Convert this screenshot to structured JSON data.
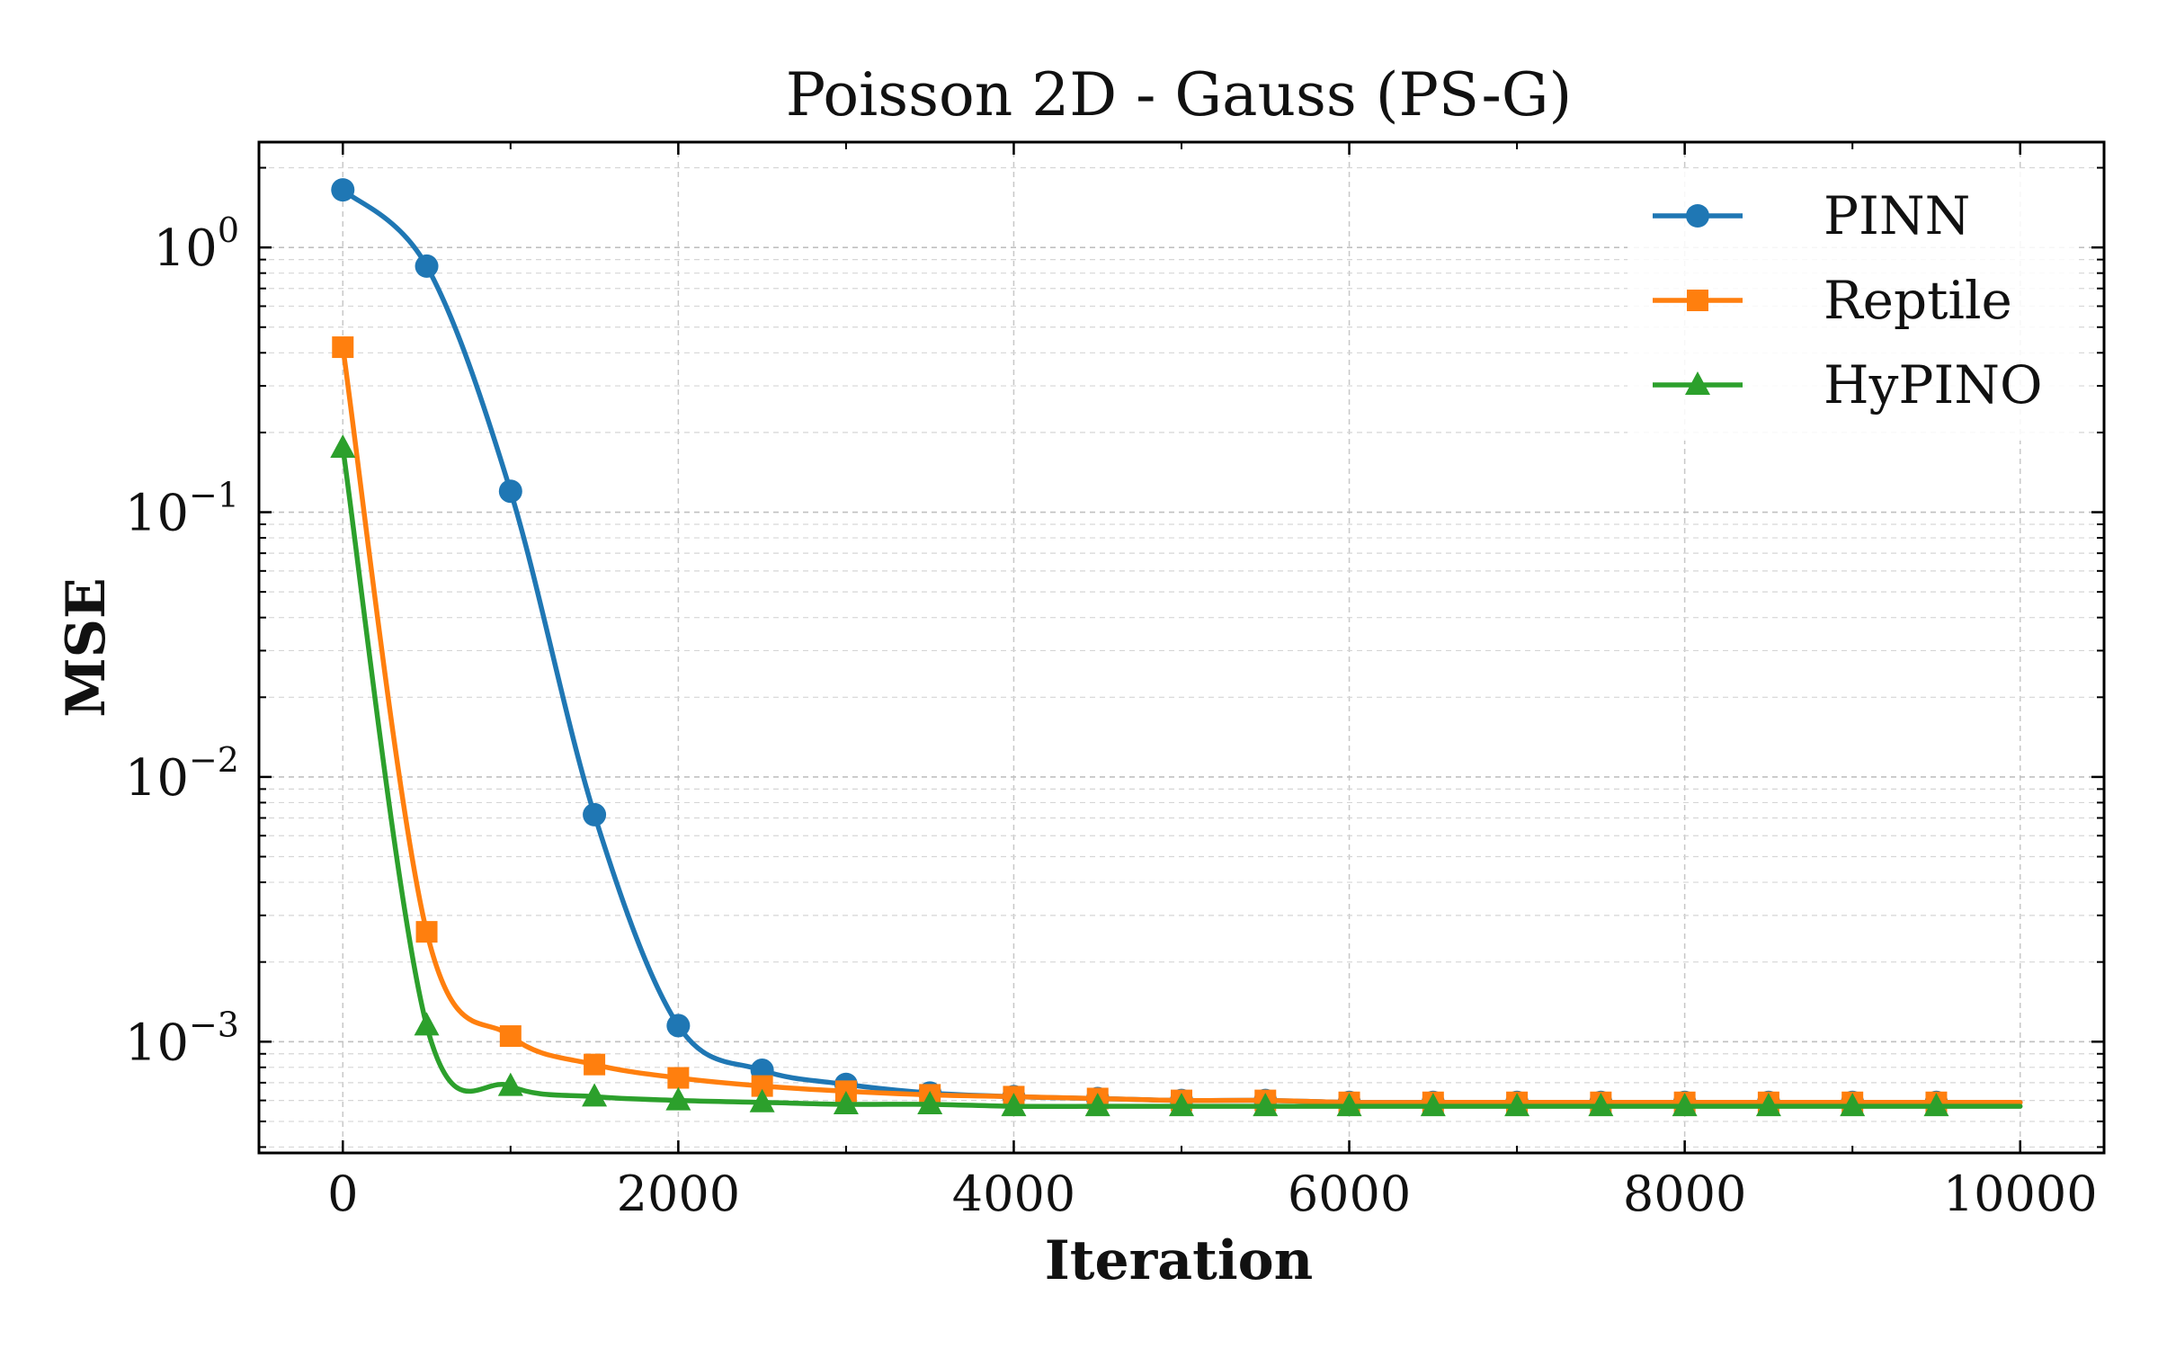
{
  "chart_data": {
    "type": "line",
    "title": "Poisson 2D - Gauss (PS-G)",
    "xlabel": "Iteration",
    "ylabel": "MSE",
    "xscale": "linear",
    "yscale": "log",
    "xlim": [
      -500,
      10500
    ],
    "ylim": [
      0.00038,
      2.5
    ],
    "xticks": [
      0,
      2000,
      4000,
      6000,
      8000,
      10000
    ],
    "xtick_labels": [
      "0",
      "2000",
      "4000",
      "6000",
      "8000",
      "10000"
    ],
    "yticks": [
      {
        "value": 1,
        "base": "10",
        "exp": "0"
      },
      {
        "value": 0.1,
        "base": "10",
        "exp": "−1"
      },
      {
        "value": 0.01,
        "base": "10",
        "exp": "−2"
      },
      {
        "value": 0.001,
        "base": "10",
        "exp": "−3"
      }
    ],
    "grid": true,
    "legend_position": "top-right",
    "series": [
      {
        "name": "PINN",
        "color": "#1f77b4",
        "marker": "circle",
        "x": [
          0,
          500,
          1000,
          1500,
          2000,
          2500,
          3000,
          3500,
          4000,
          4500,
          5000,
          5500,
          6000,
          6500,
          7000,
          7500,
          8000,
          8500,
          9000,
          9500,
          10000
        ],
        "y": [
          1.65,
          0.85,
          0.12,
          0.0072,
          0.00115,
          0.00078,
          0.00069,
          0.00064,
          0.00062,
          0.00061,
          0.0006,
          0.0006,
          0.00059,
          0.00059,
          0.00059,
          0.00059,
          0.00059,
          0.00059,
          0.00059,
          0.00059,
          0.00059
        ],
        "markers_at": [
          0,
          500,
          1000,
          1500,
          2000,
          2500,
          3000,
          3500,
          4000,
          4500,
          5000,
          5500,
          6000,
          6500,
          7000,
          7500,
          8000,
          8500,
          9000,
          9500
        ]
      },
      {
        "name": "Reptile",
        "color": "#ff7f0e",
        "marker": "square",
        "x": [
          0,
          500,
          1000,
          1500,
          2000,
          2500,
          3000,
          3500,
          4000,
          4500,
          5000,
          5500,
          6000,
          6500,
          7000,
          7500,
          8000,
          8500,
          9000,
          9500,
          10000
        ],
        "y": [
          0.42,
          0.0026,
          0.00105,
          0.00082,
          0.00073,
          0.00068,
          0.00065,
          0.00063,
          0.00062,
          0.00061,
          0.0006,
          0.0006,
          0.00059,
          0.00059,
          0.00059,
          0.00059,
          0.00059,
          0.00059,
          0.00059,
          0.00059,
          0.00059
        ],
        "markers_at": [
          0,
          500,
          1000,
          1500,
          2000,
          2500,
          3000,
          3500,
          4000,
          4500,
          5000,
          5500,
          6000,
          6500,
          7000,
          7500,
          8000,
          8500,
          9000,
          9500
        ]
      },
      {
        "name": "HyPINO",
        "color": "#2ca02c",
        "marker": "triangle",
        "x": [
          0,
          500,
          1000,
          1500,
          2000,
          2500,
          3000,
          3500,
          4000,
          4500,
          5000,
          5500,
          6000,
          6500,
          7000,
          7500,
          8000,
          8500,
          9000,
          9500,
          10000
        ],
        "y": [
          0.175,
          0.00115,
          0.00068,
          0.00062,
          0.0006,
          0.00059,
          0.00058,
          0.00058,
          0.00057,
          0.00057,
          0.00057,
          0.00057,
          0.00057,
          0.00057,
          0.00057,
          0.00057,
          0.00057,
          0.00057,
          0.00057,
          0.00057,
          0.00057
        ],
        "markers_at": [
          0,
          500,
          1000,
          1500,
          2000,
          2500,
          3000,
          3500,
          4000,
          4500,
          5000,
          5500,
          6000,
          6500,
          7000,
          7500,
          8000,
          8500,
          9000,
          9500
        ]
      }
    ]
  }
}
